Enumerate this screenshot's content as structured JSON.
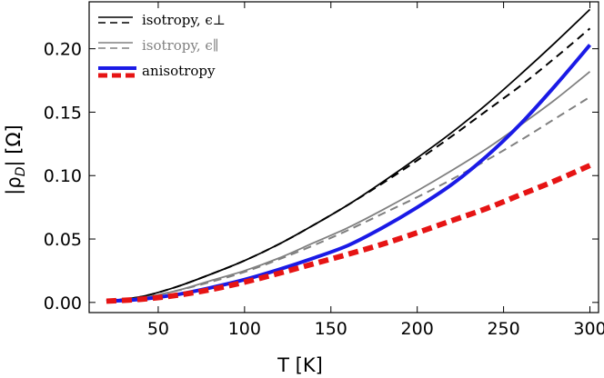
{
  "chart_data": {
    "type": "line",
    "xlabel": "T  [K]",
    "ylabel": "|ρ_D|  [Ω]",
    "ylabel_parts": {
      "prefix": "|ρ",
      "sub": "D",
      "suffix": "|  [Ω]"
    },
    "xlim": [
      10,
      305
    ],
    "ylim": [
      -0.008,
      0.237
    ],
    "xticks": [
      50,
      100,
      150,
      200,
      250,
      300
    ],
    "yticks": [
      0.0,
      0.05,
      0.1,
      0.15,
      0.2
    ],
    "ytick_labels": [
      "0.00",
      "0.05",
      "0.10",
      "0.15",
      "0.20"
    ],
    "x": [
      20,
      40,
      60,
      80,
      100,
      120,
      140,
      160,
      180,
      200,
      220,
      240,
      260,
      280,
      300
    ],
    "series": [
      {
        "name": "isotropy, ε⊥ (solid)",
        "color": "#000000",
        "dash": "",
        "width": 1.8,
        "values": [
          0.001,
          0.0045,
          0.012,
          0.022,
          0.033,
          0.046,
          0.061,
          0.077,
          0.095,
          0.114,
          0.134,
          0.156,
          0.18,
          0.205,
          0.231
        ]
      },
      {
        "name": "isotropy, ε⊥ (dashed)",
        "color": "#000000",
        "dash": "9,6",
        "width": 2.0,
        "values": [
          0.001,
          0.0045,
          0.012,
          0.022,
          0.033,
          0.046,
          0.061,
          0.077,
          0.094,
          0.112,
          0.131,
          0.151,
          0.171,
          0.193,
          0.216
        ]
      },
      {
        "name": "isotropy, ε∥ (solid)",
        "color": "#808080",
        "dash": "",
        "width": 1.8,
        "values": [
          0.001,
          0.0035,
          0.009,
          0.017,
          0.025,
          0.035,
          0.047,
          0.059,
          0.073,
          0.088,
          0.104,
          0.121,
          0.14,
          0.16,
          0.182
        ]
      },
      {
        "name": "isotropy, ε∥ (dashed)",
        "color": "#808080",
        "dash": "9,6",
        "width": 2.0,
        "values": [
          0.001,
          0.0035,
          0.009,
          0.016,
          0.024,
          0.034,
          0.045,
          0.057,
          0.07,
          0.083,
          0.097,
          0.112,
          0.128,
          0.145,
          0.162
        ]
      },
      {
        "name": "anisotropy (solid)",
        "color": "#1a1ae6",
        "dash": "",
        "width": 4.0,
        "values": [
          0.001,
          0.0025,
          0.006,
          0.0115,
          0.018,
          0.026,
          0.035,
          0.045,
          0.059,
          0.075,
          0.093,
          0.115,
          0.141,
          0.171,
          0.203
        ]
      },
      {
        "name": "anisotropy (dashed)",
        "color": "#e61414",
        "dash": "11,6",
        "width": 6.0,
        "values": [
          0.001,
          0.0025,
          0.0055,
          0.01,
          0.016,
          0.023,
          0.0305,
          0.038,
          0.046,
          0.055,
          0.0645,
          0.074,
          0.085,
          0.096,
          0.108
        ]
      }
    ],
    "legend": {
      "location": "top-left",
      "entries": [
        {
          "label": "isotropy, ϵ⊥",
          "text_color": "#000000",
          "solid_color": "#000000",
          "dashed_color": "#000000",
          "style": "pair"
        },
        {
          "label": "isotropy, ϵ∥",
          "text_color": "#808080",
          "solid_color": "#808080",
          "dashed_color": "#808080",
          "style": "pair"
        },
        {
          "label": "anisotropy",
          "text_color": "#000000",
          "solid_color": "#1a1ae6",
          "dashed_color": "#e61414",
          "style": "stack"
        }
      ]
    }
  }
}
